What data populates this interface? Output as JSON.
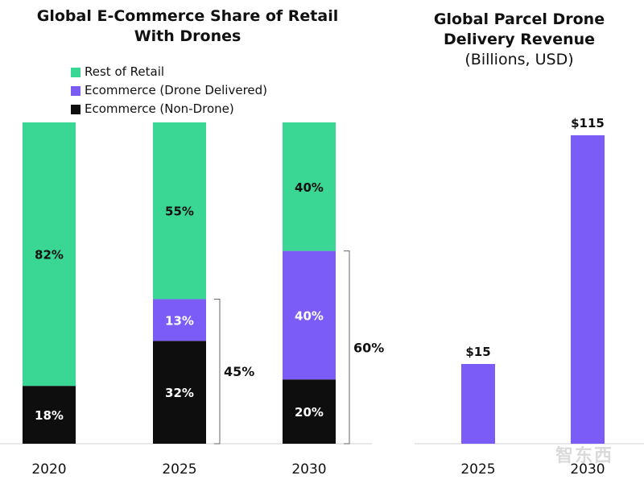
{
  "colors": {
    "rest": "#3ad693",
    "drone": "#7b5cf6",
    "nondrone": "#0e0e0e"
  },
  "watermark": "智东西",
  "chart_data": [
    {
      "type": "bar",
      "stacked": true,
      "title_lines": [
        "Global E-Commerce Share of Retail",
        "With Drones"
      ],
      "categories": [
        "2020",
        "2025",
        "2030"
      ],
      "series": [
        {
          "name": "Ecommerce (Non-Drone)",
          "key": "nondrone",
          "values": [
            18,
            32,
            20
          ],
          "labels": [
            "18%",
            "32%",
            "20%"
          ]
        },
        {
          "name": "Ecommerce (Drone Delivered)",
          "key": "drone",
          "values": [
            0,
            13,
            40
          ],
          "labels": [
            "",
            "13%",
            "40%"
          ]
        },
        {
          "name": "Rest of Retail",
          "key": "rest",
          "values": [
            82,
            55,
            40
          ],
          "labels": [
            "82%",
            "55%",
            "40%"
          ]
        }
      ],
      "legend": [
        "Rest of Retail",
        "Ecommerce (Drone Delivered)",
        "Ecommerce (Non-Drone)"
      ],
      "legend_placement": "top-left",
      "annotations": [
        {
          "category": "2025",
          "text": "45%",
          "from": 0,
          "to": 45
        },
        {
          "category": "2030",
          "text": "60%",
          "from": 0,
          "to": 60
        }
      ],
      "ylim": [
        0,
        100
      ]
    },
    {
      "type": "bar",
      "title_lines": [
        "Global Parcel Drone",
        "Delivery Revenue"
      ],
      "subtitle": "(Billions, USD)",
      "categories": [
        "2025",
        "2030"
      ],
      "values": [
        15,
        115
      ],
      "labels": [
        "$15",
        "$115"
      ],
      "ylim": [
        0,
        115
      ]
    }
  ]
}
